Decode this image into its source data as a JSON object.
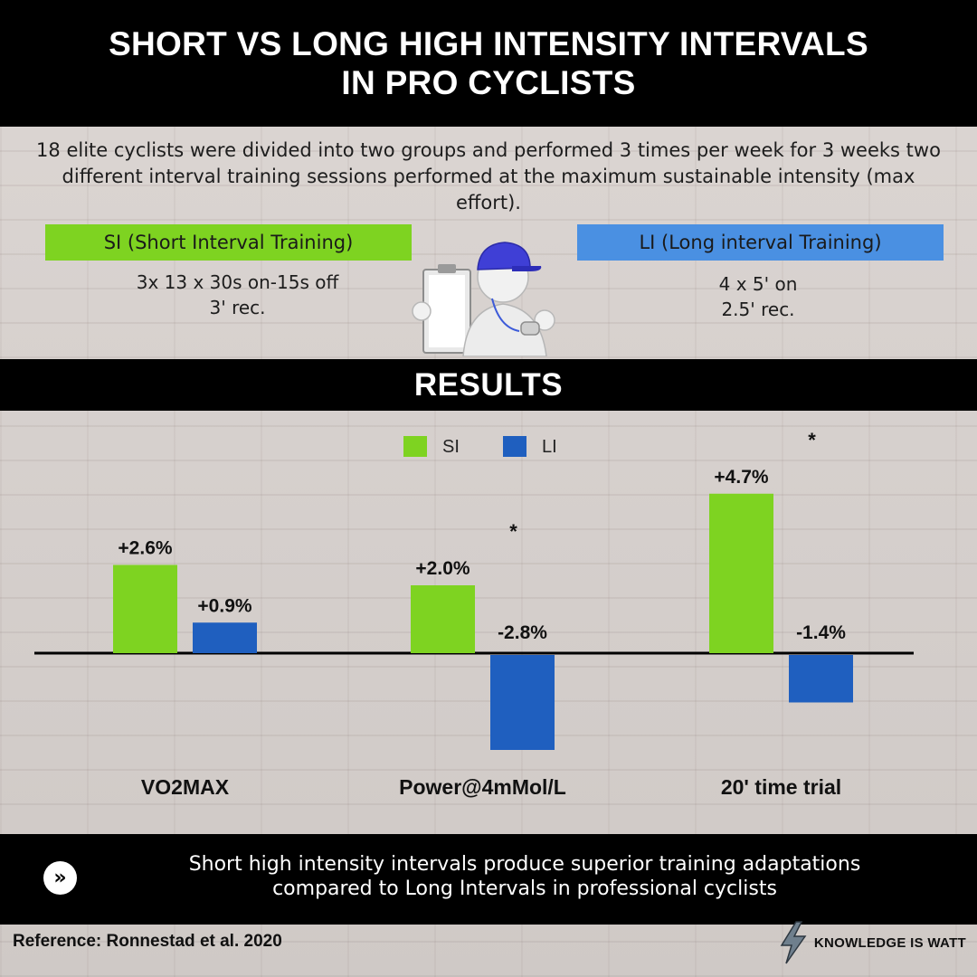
{
  "header": {
    "title": "SHORT VS LONG  HIGH INTENSITY INTERVALS\nIN PRO CYCLISTS"
  },
  "intro": "18 elite cyclists were divided into two groups and performed  3 times per week for 3 weeks two different interval training sessions performed at the maximum sustainable intensity (max effort).",
  "groups": {
    "si": {
      "label": "SI (Short Interval Training)",
      "protocol": "3x 13 x 30s on-15s off\n3' rec.",
      "color": "#7ed321"
    },
    "li": {
      "label": "LI (Long interval Training)",
      "protocol": "4 x 5'  on\n2.5' rec.",
      "color": "#4a90e2"
    }
  },
  "figure_icon": "coach-with-clipboard-and-whistle-icon",
  "results": {
    "heading": "RESULTS"
  },
  "chart_data": {
    "type": "bar",
    "categories": [
      "VO2MAX",
      "Power@4mMol/L",
      "20' time trial"
    ],
    "series": [
      {
        "name": "SI",
        "color": "#7ed321",
        "values": [
          2.6,
          2.0,
          4.7
        ],
        "labels": [
          "+2.6%",
          "+2.0%",
          "+4.7%"
        ]
      },
      {
        "name": "LI",
        "color": "#1f5fbf",
        "values": [
          0.9,
          -2.8,
          -1.4
        ],
        "labels": [
          "+0.9%",
          "-2.8%",
          "-1.4%"
        ]
      }
    ],
    "significance": [
      "",
      "*",
      "*"
    ],
    "ylim": [
      -3.0,
      5.2
    ],
    "grid": false,
    "legend": "top-center"
  },
  "conclusion": {
    "icon": "double-chevron-right-icon",
    "text": "Short high intensity intervals produce superior training adaptations\ncompared to Long Intervals in professional cyclists"
  },
  "footer": {
    "reference": "Reference: Ronnestad et al. 2020",
    "brand": "KNOWLEDGE IS WATT",
    "brand_icon": "lightning-bolt-icon"
  }
}
